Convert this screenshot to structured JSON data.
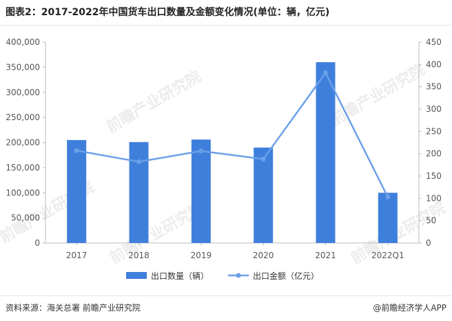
{
  "title": "图表2：2017-2022年中国货车出口数量及金额变化情况(单位：辆，亿元)",
  "source": "资料来源：海关总署 前瞻产业研究院",
  "brand": "@前瞻经济学人APP",
  "watermark": "前瞻产业研究院",
  "colors": {
    "bar": "#3f7fdc",
    "line": "#6aa0ea",
    "axis": "#bbbbbb",
    "text": "#555555"
  },
  "chart_data": {
    "type": "bar",
    "categories": [
      "2017",
      "2018",
      "2019",
      "2020",
      "2021",
      "2022Q1"
    ],
    "series": [
      {
        "name": "出口数量（辆）",
        "type": "bar",
        "axis": "left",
        "values": [
          205000,
          201000,
          206000,
          190000,
          360000,
          100000
        ]
      },
      {
        "name": "出口金额（亿元）",
        "type": "line",
        "axis": "right",
        "values": [
          207,
          182,
          206,
          188,
          381,
          103
        ]
      }
    ],
    "left_ylim": [
      0,
      400000
    ],
    "left_ticks": [
      "0",
      "50,000",
      "100,000",
      "150,000",
      "200,000",
      "250,000",
      "300,000",
      "350,000",
      "400,000"
    ],
    "right_ylim": [
      0,
      450
    ],
    "right_ticks": [
      "0",
      "50",
      "100",
      "150",
      "200",
      "250",
      "300",
      "350",
      "400",
      "450"
    ],
    "legend_position": "bottom"
  }
}
